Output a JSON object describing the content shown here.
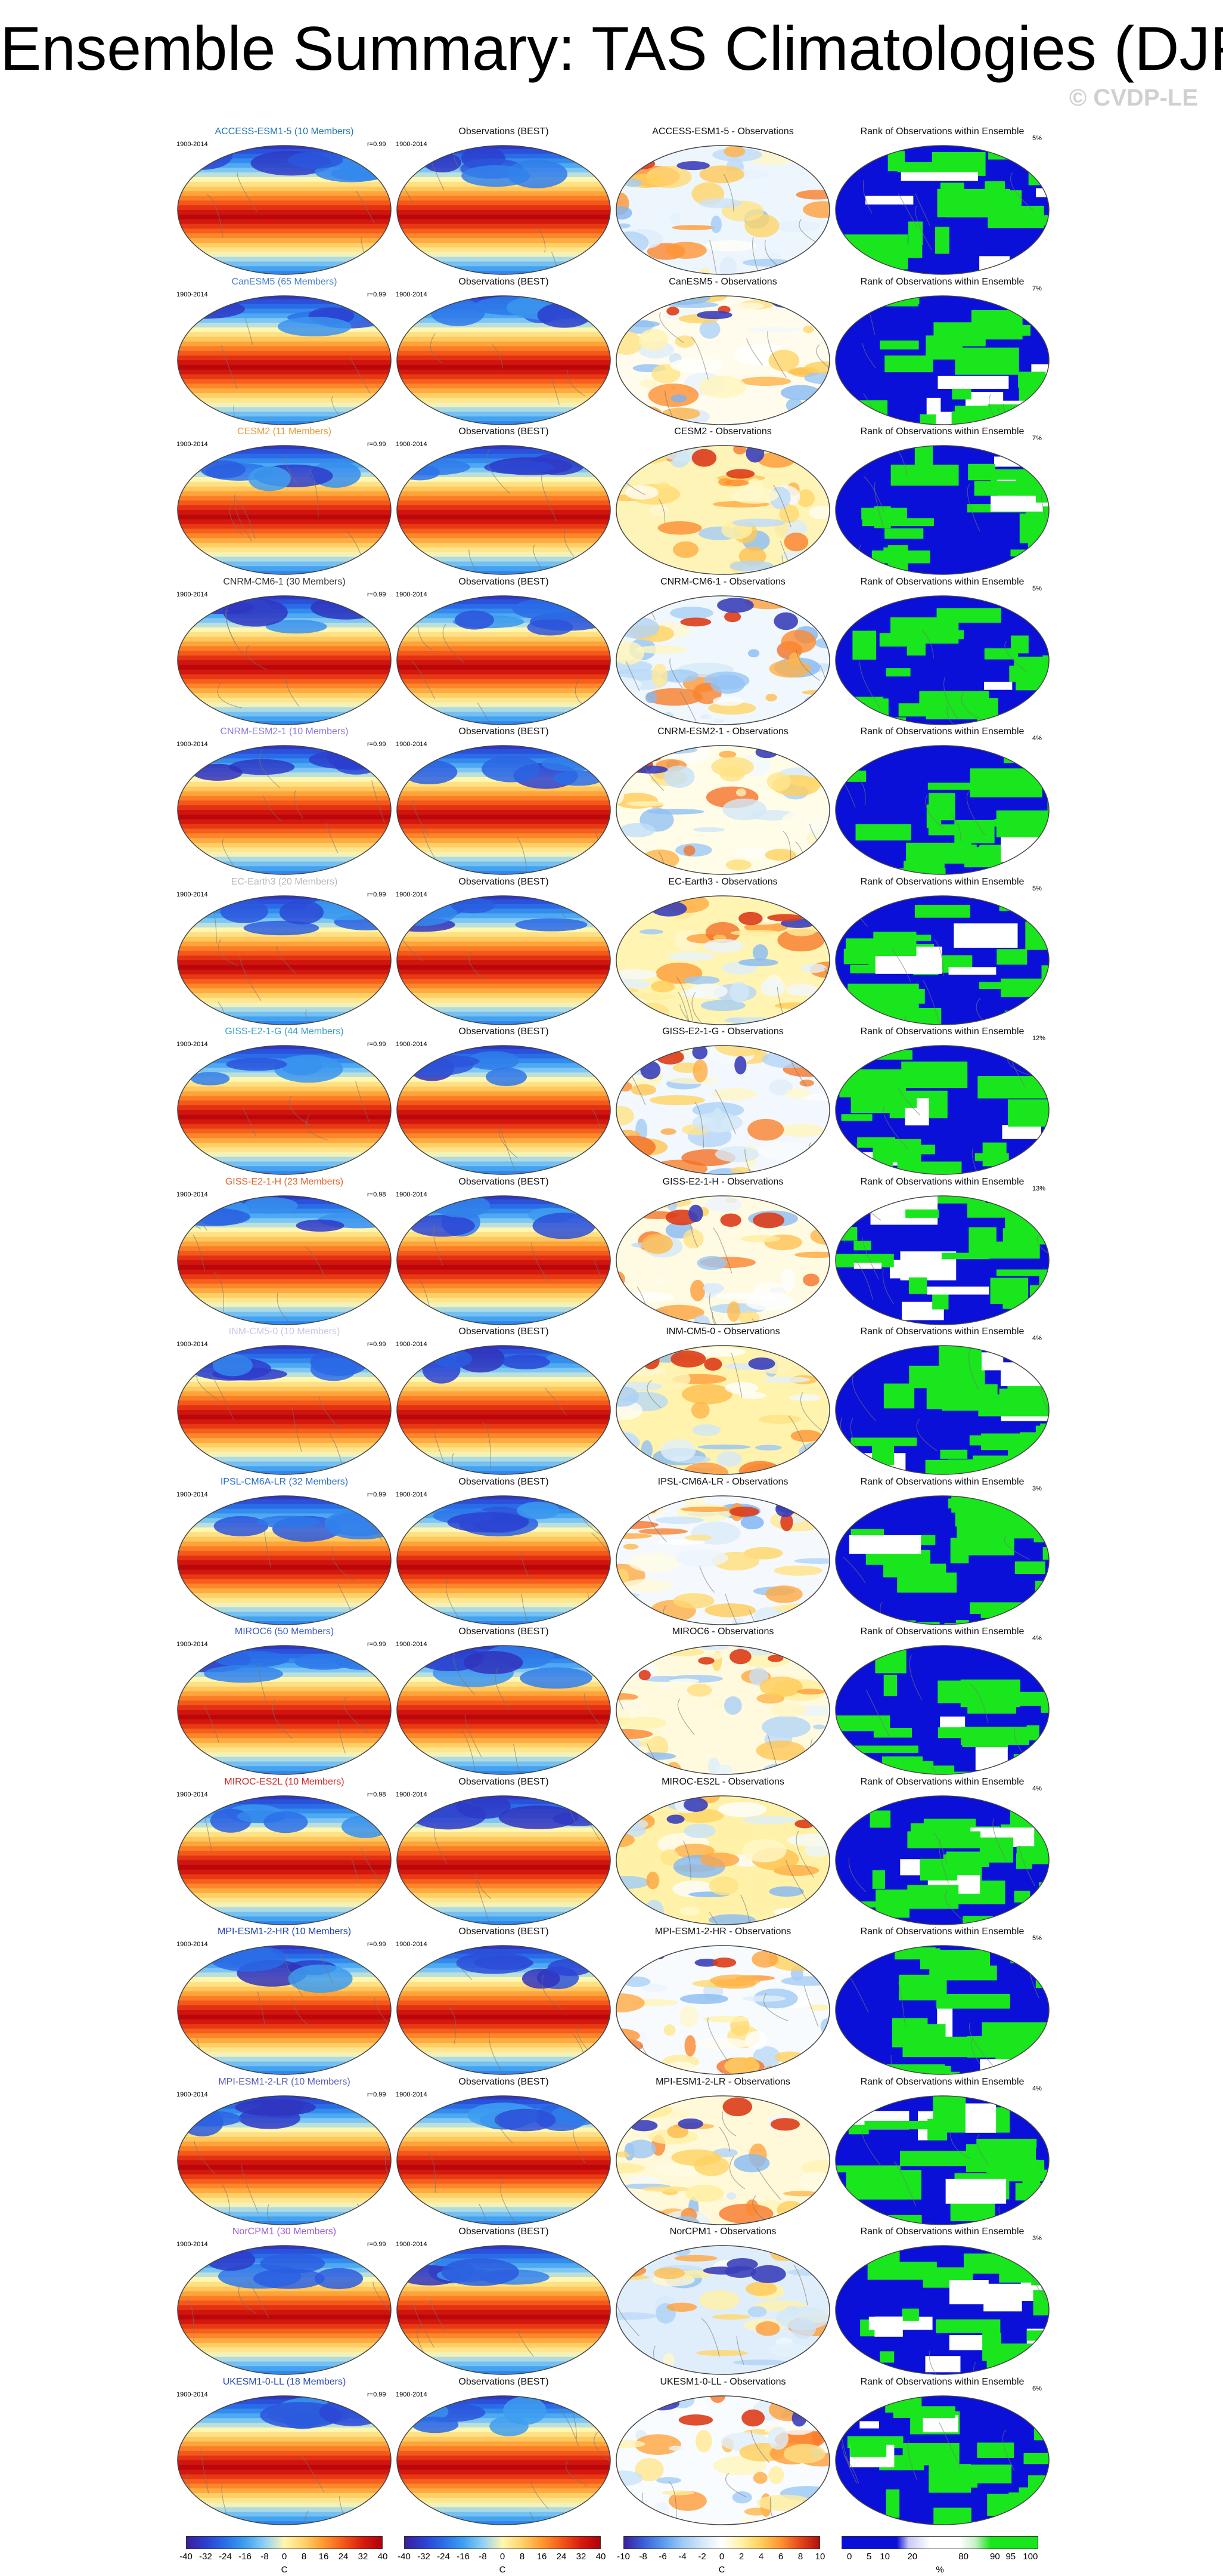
{
  "title": "Ensemble Summary: TAS Climatologies (DJF)",
  "credit": "© CVDP-LE",
  "obs_title": "Observations (BEST)",
  "rank_title": "Rank of Observations within Ensemble",
  "years": "1900-2014",
  "rows": [
    {
      "model": "ACCESS-ESM1-5 (10 Members)",
      "diff": "ACCESS-ESM1-5 - Observations",
      "r": "r=0.99",
      "pct": "5%",
      "color": "#1f77b4"
    },
    {
      "model": "CanESM5 (65 Members)",
      "diff": "CanESM5 - Observations",
      "r": "r=0.99",
      "pct": "7%",
      "color": "#4a7fd0"
    },
    {
      "model": "CESM2 (11 Members)",
      "diff": "CESM2 - Observations",
      "r": "r=0.99",
      "pct": "7%",
      "color": "#e39a3a"
    },
    {
      "model": "CNRM-CM6-1 (30 Members)",
      "diff": "CNRM-CM6-1 - Observations",
      "r": "r=0.99",
      "pct": "5%",
      "color": "#333333"
    },
    {
      "model": "CNRM-ESM2-1 (10 Members)",
      "diff": "CNRM-ESM2-1 - Observations",
      "r": "r=0.99",
      "pct": "4%",
      "color": "#8b7be0"
    },
    {
      "model": "EC-Earth3 (20 Members)",
      "diff": "EC-Earth3 - Observations",
      "r": "r=0.99",
      "pct": "5%",
      "color": "#b8b8b8"
    },
    {
      "model": "GISS-E2-1-G (44 Members)",
      "diff": "GISS-E2-1-G - Observations",
      "r": "r=0.99",
      "pct": "12%",
      "color": "#3aa0c8"
    },
    {
      "model": "GISS-E2-1-H (23 Members)",
      "diff": "GISS-E2-1-H - Observations",
      "r": "r=0.98",
      "pct": "13%",
      "color": "#e5622a"
    },
    {
      "model": "INM-CM5-0 (10 Members)",
      "diff": "INM-CM5-0 - Observations",
      "r": "r=0.99",
      "pct": "4%",
      "color": "#c8c8e8"
    },
    {
      "model": "IPSL-CM6A-LR (32 Members)",
      "diff": "IPSL-CM6A-LR - Observations",
      "r": "r=0.99",
      "pct": "3%",
      "color": "#2a6ec8"
    },
    {
      "model": "MIROC6 (50 Members)",
      "diff": "MIROC6 - Observations",
      "r": "r=0.99",
      "pct": "4%",
      "color": "#3b5ec8"
    },
    {
      "model": "MIROC-ES2L (10 Members)",
      "diff": "MIROC-ES2L - Observations",
      "r": "r=0.98",
      "pct": "4%",
      "color": "#d02a2a"
    },
    {
      "model": "MPI-ESM1-2-HR (10 Members)",
      "diff": "MPI-ESM1-2-HR - Observations",
      "r": "r=0.99",
      "pct": "5%",
      "color": "#1f3fb0"
    },
    {
      "model": "MPI-ESM1-2-LR (10 Members)",
      "diff": "MPI-ESM1-2-LR - Observations",
      "r": "r=0.99",
      "pct": "4%",
      "color": "#5a5ab8"
    },
    {
      "model": "NorCPM1 (30 Members)",
      "diff": "NorCPM1 - Observations",
      "r": "r=0.99",
      "pct": "3%",
      "color": "#9a5ad8"
    },
    {
      "model": "UKESM1-0-LL (18 Members)",
      "diff": "UKESM1-0-LL - Observations",
      "r": "r=0.99",
      "pct": "6%",
      "color": "#2a4ab0"
    }
  ],
  "colorbars": {
    "climatology": {
      "ticks": [
        "-40",
        "-32",
        "-24",
        "-16",
        "-8",
        "0",
        "8",
        "16",
        "24",
        "32",
        "40"
      ],
      "unit": "C"
    },
    "difference": {
      "ticks": [
        "-10",
        "-8",
        "-6",
        "-4",
        "-2",
        "0",
        "2",
        "4",
        "6",
        "8",
        "10"
      ],
      "unit": "C"
    },
    "rank": {
      "ticks": [
        "0",
        "5",
        "10",
        "20",
        "80",
        "90",
        "95",
        "100"
      ],
      "unit": "%"
    }
  },
  "palette": {
    "clim": [
      "#3a1f9c",
      "#2b3fd0",
      "#2a6ee8",
      "#3ea0f0",
      "#8fd0f5",
      "#fff7b0",
      "#ffd36a",
      "#ff9a30",
      "#f55a1a",
      "#d91c0f",
      "#b0000a"
    ],
    "diff": [
      "#3a1f9c",
      "#3b5fd8",
      "#5a9bee",
      "#9ec9f5",
      "#d4e8f8",
      "#ffffff",
      "#fff2a8",
      "#ffcf5a",
      "#ff9433",
      "#e8471a",
      "#b0100e"
    ],
    "rank": {
      "low": "#0b10d8",
      "mid": "#ffffff",
      "high": "#19e61c"
    }
  }
}
